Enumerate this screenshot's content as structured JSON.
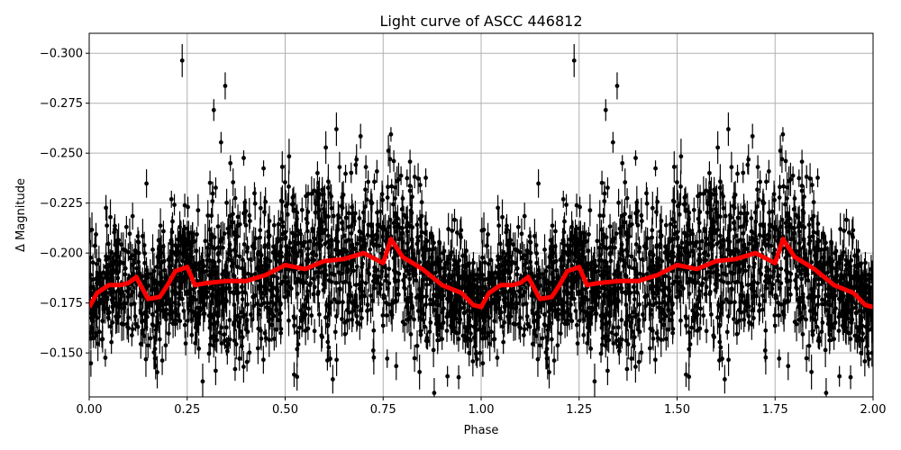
{
  "chart_data": {
    "type": "scatter",
    "title": "Light curve of ASCC 446812",
    "xlabel": "Phase",
    "ylabel": "Δ Magnitude",
    "xlim": [
      0.0,
      2.0
    ],
    "ylim": [
      -0.31,
      -0.128
    ],
    "y_inverted": true,
    "grid": true,
    "x_ticks": [
      "0.00",
      "0.25",
      "0.50",
      "0.75",
      "1.00",
      "1.25",
      "1.50",
      "1.75",
      "2.00"
    ],
    "y_ticks": [
      "−0.300",
      "−0.275",
      "−0.250",
      "−0.225",
      "−0.200",
      "−0.175",
      "−0.150"
    ],
    "y_tick_values": [
      -0.3,
      -0.275,
      -0.25,
      -0.225,
      -0.2,
      -0.175,
      -0.15
    ],
    "colors": {
      "points": "#000000",
      "trend": "#ff0000",
      "grid": "#b0b0b0"
    },
    "series": [
      {
        "type": "scatter-errorbar",
        "description_visible": "dense black points with vertical error bars, scatter about the red curve",
        "typical_error": 0.006
      },
      {
        "type": "line",
        "x": [
          0.0,
          0.02,
          0.05,
          0.08,
          0.1,
          0.12,
          0.15,
          0.18,
          0.2,
          0.22,
          0.25,
          0.27,
          0.3,
          0.35,
          0.4,
          0.45,
          0.5,
          0.55,
          0.6,
          0.65,
          0.7,
          0.75,
          0.77,
          0.8,
          0.85,
          0.9,
          0.95,
          0.98,
          1.0,
          1.02,
          1.05,
          1.08,
          1.1,
          1.12,
          1.15,
          1.18,
          1.2,
          1.22,
          1.25,
          1.27,
          1.3,
          1.35,
          1.4,
          1.45,
          1.5,
          1.55,
          1.6,
          1.65,
          1.7,
          1.75,
          1.77,
          1.8,
          1.85,
          1.9,
          1.95,
          1.98,
          2.0
        ],
        "y": [
          -0.173,
          -0.18,
          -0.184,
          -0.184,
          -0.185,
          -0.188,
          -0.177,
          -0.178,
          -0.184,
          -0.191,
          -0.193,
          -0.184,
          -0.185,
          -0.186,
          -0.186,
          -0.189,
          -0.194,
          -0.192,
          -0.196,
          -0.197,
          -0.2,
          -0.195,
          -0.207,
          -0.198,
          -0.192,
          -0.184,
          -0.18,
          -0.174,
          -0.173,
          -0.18,
          -0.184,
          -0.184,
          -0.185,
          -0.188,
          -0.177,
          -0.178,
          -0.184,
          -0.191,
          -0.193,
          -0.184,
          -0.185,
          -0.186,
          -0.186,
          -0.189,
          -0.194,
          -0.192,
          -0.196,
          -0.197,
          -0.2,
          -0.195,
          -0.207,
          -0.198,
          -0.192,
          -0.184,
          -0.18,
          -0.174,
          -0.173
        ]
      }
    ]
  }
}
